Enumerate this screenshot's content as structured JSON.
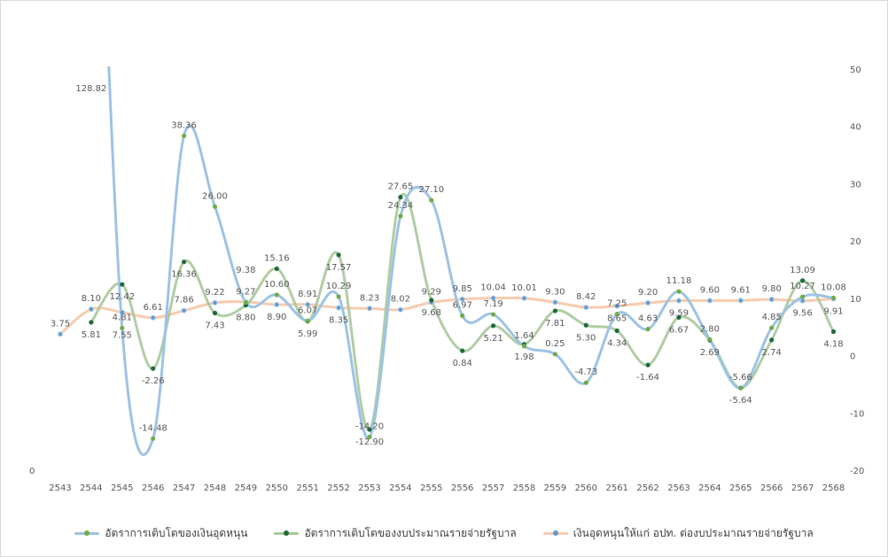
{
  "chart_data": {
    "type": "line",
    "title": "",
    "categories": [
      "2543",
      "2544",
      "2545",
      "2546",
      "2547",
      "2548",
      "2549",
      "2550",
      "2551",
      "2552",
      "2553",
      "2554",
      "2555",
      "2556",
      "2557",
      "2558",
      "2559",
      "2560",
      "2561",
      "2562",
      "2563",
      "2564",
      "2565",
      "2566",
      "2567",
      "2568"
    ],
    "y_axis_right": {
      "min": -20,
      "max": 50,
      "ticks": [
        "-20",
        "-10",
        "0",
        "10",
        "20",
        "30",
        "40",
        "50"
      ]
    },
    "y_axis_left": {
      "ticks": [
        "0"
      ]
    },
    "legend_position": "bottom",
    "series": [
      {
        "name": "อัตราการเติบโตของเงินอุดหนุน",
        "line_color": "#9dc3e6",
        "marker_color": "#70ad47",
        "values": [
          null,
          128.82,
          4.81,
          -14.48,
          38.36,
          26.0,
          9.27,
          10.6,
          6.07,
          10.29,
          -14.2,
          24.34,
          27.1,
          6.97,
          7.19,
          1.64,
          0.25,
          -4.73,
          7.25,
          4.63,
          11.18,
          2.8,
          -5.66,
          4.85,
          10.27,
          10.08
        ]
      },
      {
        "name": "อัตราการเติบโตของงบประมาณรายจ่ายรัฐบาล",
        "line_color": "#a9c89a",
        "marker_color": "#1e6b3a",
        "values": [
          null,
          5.81,
          12.42,
          -2.26,
          16.36,
          7.43,
          8.8,
          15.16,
          5.99,
          17.57,
          -12.9,
          27.65,
          9.68,
          0.84,
          5.21,
          1.98,
          7.81,
          5.3,
          4.34,
          -1.64,
          6.67,
          2.69,
          -5.64,
          2.74,
          13.09,
          4.18
        ]
      },
      {
        "name": "เงินอุดหนุนให้แก่ อปท. ต่องบประมาณรายจ่ายรัฐบาล",
        "line_color": "#f8cbad",
        "marker_color": "#5b9bd5",
        "values": [
          3.75,
          8.1,
          7.55,
          6.61,
          7.86,
          9.22,
          9.38,
          8.9,
          8.91,
          8.35,
          8.23,
          8.02,
          9.29,
          9.85,
          10.04,
          10.01,
          9.3,
          8.42,
          8.65,
          9.2,
          9.59,
          9.6,
          9.61,
          9.8,
          9.56,
          9.91
        ]
      }
    ]
  }
}
